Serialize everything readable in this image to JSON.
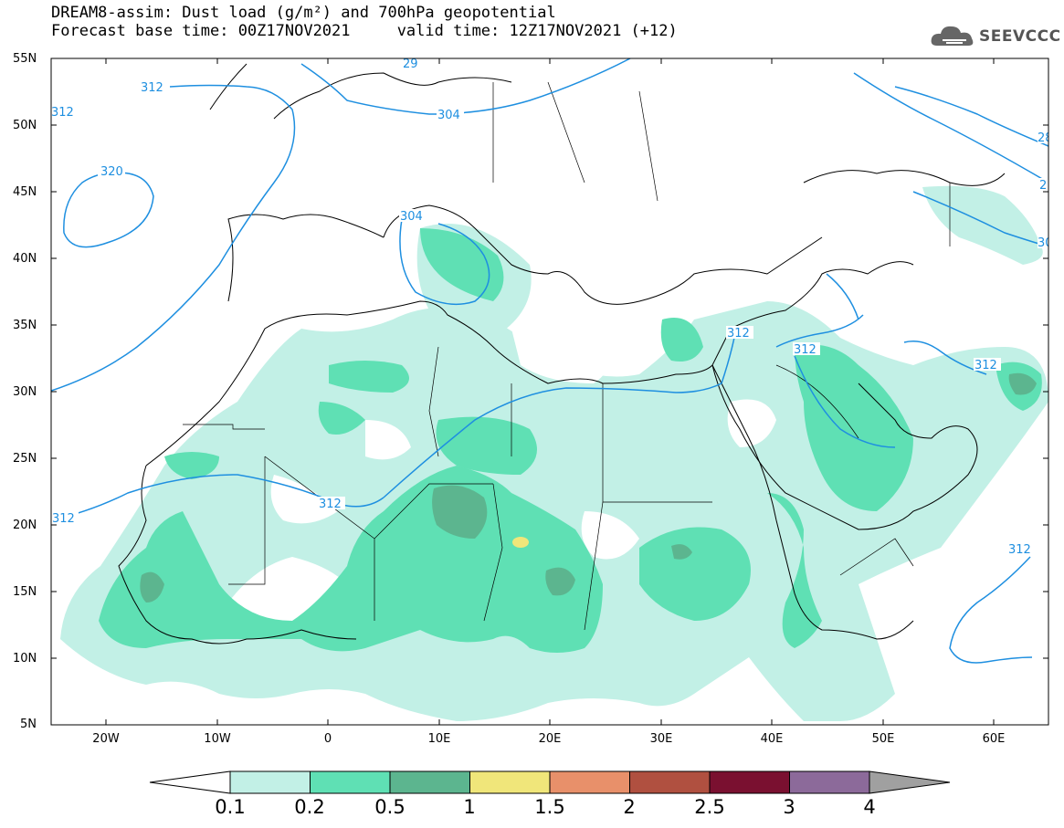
{
  "title_line1": "DREAM8-assim: Dust load (g/m²) and 700hPa geopotential",
  "title_line2": "Forecast base time: 00Z17NOV2021     valid time: 12Z17NOV2021 (+12)",
  "logo_text": "SEEVCCC",
  "lat_labels": [
    "55N",
    "50N",
    "45N",
    "40N",
    "35N",
    "30N",
    "25N",
    "20N",
    "15N",
    "10N",
    "5N"
  ],
  "lon_labels": [
    "20W",
    "10W",
    "0",
    "10E",
    "20E",
    "30E",
    "40E",
    "50E",
    "60E"
  ],
  "contour_labels": [
    "312",
    "312",
    "320",
    "304",
    "29",
    "304",
    "312",
    "312",
    "312",
    "312",
    "28",
    "2",
    "30",
    "312",
    "312"
  ],
  "colorbar": {
    "levels": [
      "0.1",
      "0.2",
      "0.5",
      "1",
      "1.5",
      "2",
      "2.5",
      "3",
      "4"
    ],
    "colors": [
      "#c2f0e6",
      "#5fe0b4",
      "#5cb58f",
      "#f0e67a",
      "#e8906a",
      "#b05040",
      "#7a1030",
      "#8c6a9a",
      "#a0a0a0"
    ]
  },
  "colors": {
    "contour": "#1e8fe0",
    "coast": "#000000",
    "dust_low": "#c2f0e6",
    "dust_mid": "#5fe0b4",
    "dust_high": "#5cb58f",
    "dust_peak": "#f0e67a"
  }
}
